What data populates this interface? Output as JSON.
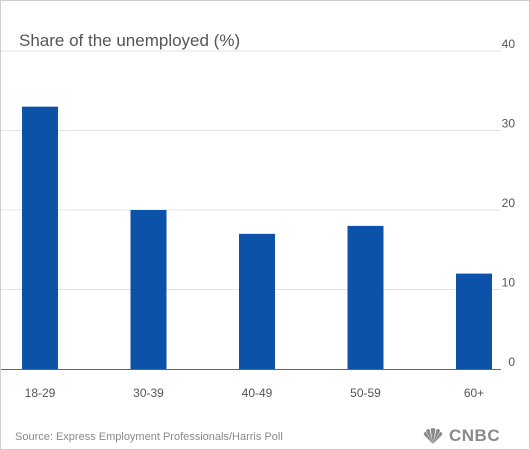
{
  "chart_data": {
    "type": "bar",
    "title": "Share of the unemployed (%)",
    "categories": [
      "18-29",
      "30-39",
      "40-49",
      "50-59",
      "60+"
    ],
    "values": [
      33,
      20,
      17,
      18,
      12
    ],
    "xlabel": "",
    "ylabel": "",
    "ylim": [
      0,
      40
    ],
    "yticks": [
      0,
      10,
      20,
      30,
      40
    ],
    "y_axis_side": "right",
    "grid": true,
    "legend": "none",
    "bar_color": "#0c52a8",
    "grid_color": "#e3e3e3"
  },
  "source": "Source: Express Employment Professionals/Harris Poll",
  "logo": {
    "text": "CNBC",
    "icon": "peacock-icon",
    "color": "#8a8a8a"
  }
}
